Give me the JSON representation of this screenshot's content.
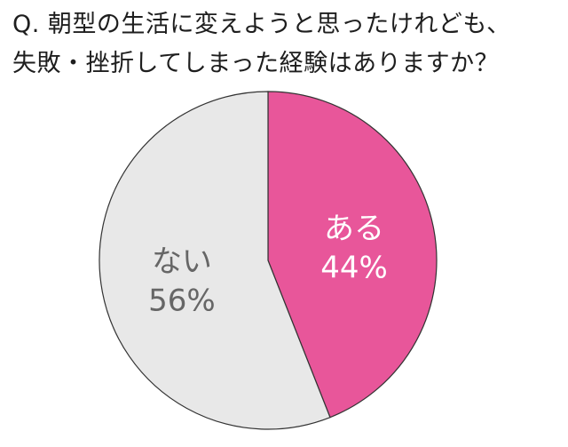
{
  "title": {
    "line1": "Q. 朝型の生活に変えようと思ったけれども、",
    "line2": "失敗・挫折してしまった経験はありますか？"
  },
  "chart_data": {
    "type": "pie",
    "categories": [
      "ある",
      "ない"
    ],
    "values": [
      44,
      56
    ],
    "value_labels": [
      "44%",
      "56%"
    ],
    "colors": [
      "#e8569a",
      "#e8e8e8"
    ],
    "label_colors": [
      "#ffffff",
      "#666666"
    ],
    "start": "12 o'clock",
    "direction": "clockwise",
    "legend": "none"
  }
}
